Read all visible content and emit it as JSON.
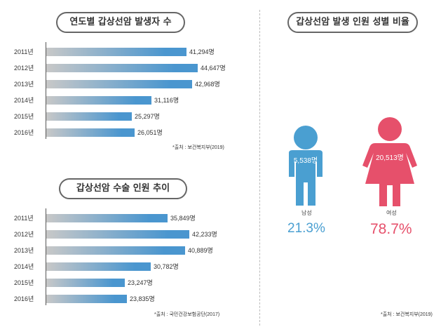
{
  "titles": {
    "yearly_patients": "연도별 갑상선암 발생자 수",
    "surgery_trend": "갑상선암 수술 인원 추이",
    "gender_ratio": "갑상선암 발생 인원 성별 비율"
  },
  "sources": {
    "yearly_patients": "*출처 : 보건복지부(2019)",
    "surgery_trend": "*출처 : 국민건강보험공단(2017)",
    "gender_ratio": "*출처 : 보건복지부(2019)"
  },
  "colors": {
    "male": "#4a9fd1",
    "female": "#e6506b",
    "bar_end": "#4a96cf",
    "bar_start": "#c8c8c8"
  },
  "chart_data": [
    {
      "type": "bar",
      "orientation": "horizontal",
      "title": "연도별 갑상선암 발생자 수",
      "categories": [
        "2011년",
        "2012년",
        "2013년",
        "2014년",
        "2015년",
        "2016년"
      ],
      "values": [
        41294,
        44647,
        42968,
        31116,
        25297,
        26051
      ],
      "value_labels": [
        "41,294명",
        "44,647명",
        "42,968명",
        "31,116명",
        "25,297명",
        "26,051명"
      ],
      "xlim": [
        0,
        48000
      ]
    },
    {
      "type": "bar",
      "orientation": "horizontal",
      "title": "갑상선암 수술 인원 추이",
      "categories": [
        "2011년",
        "2012년",
        "2013년",
        "2014년",
        "2015년",
        "2016년"
      ],
      "values": [
        35849,
        42233,
        40889,
        30782,
        23247,
        23835
      ],
      "value_labels": [
        "35,849명",
        "42,233명",
        "40,889명",
        "30,782명",
        "23,247명",
        "23,835명"
      ],
      "xlim": [
        0,
        48000
      ]
    },
    {
      "type": "pie",
      "title": "갑상선암 발생 인원 성별 비율",
      "categories": [
        "남성",
        "여성"
      ],
      "values": [
        5538,
        20513
      ],
      "value_labels": [
        "5,538명",
        "20,513명"
      ],
      "percent_labels": [
        "21.3%",
        "78.7%"
      ],
      "display": "pictogram"
    }
  ]
}
